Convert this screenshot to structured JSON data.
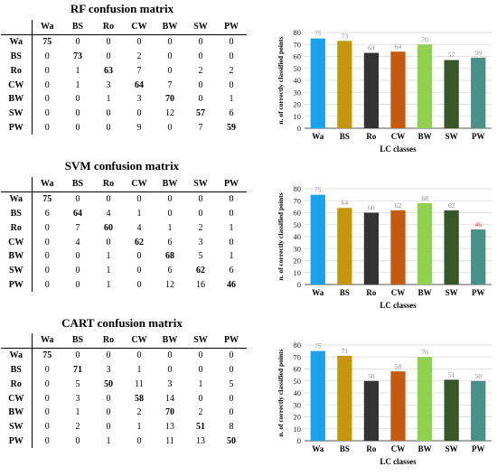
{
  "panels": [
    {
      "title": "RF confusion matrix",
      "matrix": {
        "columns": [
          "Wa",
          "BS",
          "Ro",
          "CW",
          "BW",
          "SW",
          "PW"
        ],
        "rows": [
          {
            "label": "Wa",
            "values": [
              75,
              0,
              0,
              0,
              0,
              0,
              0
            ]
          },
          {
            "label": "BS",
            "values": [
              0,
              73,
              0,
              2,
              0,
              0,
              0
            ]
          },
          {
            "label": "Ro",
            "values": [
              0,
              1,
              63,
              7,
              0,
              2,
              2
            ]
          },
          {
            "label": "CW",
            "values": [
              0,
              1,
              3,
              64,
              7,
              0,
              0
            ]
          },
          {
            "label": "BW",
            "values": [
              0,
              0,
              1,
              3,
              70,
              0,
              1
            ]
          },
          {
            "label": "SW",
            "values": [
              0,
              0,
              0,
              0,
              12,
              57,
              6
            ]
          },
          {
            "label": "PW",
            "values": [
              0,
              0,
              0,
              9,
              0,
              7,
              59
            ]
          }
        ]
      }
    },
    {
      "title": "SVM confusion matrix",
      "matrix": {
        "columns": [
          "Wa",
          "BS",
          "Ro",
          "CW",
          "BW",
          "SW",
          "PW"
        ],
        "rows": [
          {
            "label": "Wa",
            "values": [
              75,
              0,
              0,
              0,
              0,
              0,
              0
            ]
          },
          {
            "label": "BS",
            "values": [
              6,
              64,
              4,
              1,
              0,
              0,
              0
            ]
          },
          {
            "label": "Ro",
            "values": [
              0,
              7,
              60,
              4,
              1,
              2,
              1
            ]
          },
          {
            "label": "CW",
            "values": [
              0,
              4,
              0,
              62,
              6,
              3,
              0
            ]
          },
          {
            "label": "BW",
            "values": [
              0,
              0,
              1,
              0,
              68,
              5,
              1
            ]
          },
          {
            "label": "SW",
            "values": [
              0,
              0,
              1,
              0,
              6,
              62,
              6
            ]
          },
          {
            "label": "PW",
            "values": [
              0,
              0,
              1,
              0,
              12,
              16,
              46
            ]
          }
        ]
      }
    },
    {
      "title": "CART  confusion matrix",
      "matrix": {
        "columns": [
          "Wa",
          "BS",
          "Ro",
          "CW",
          "BW",
          "SW",
          "PW"
        ],
        "rows": [
          {
            "label": "Wa",
            "values": [
              75,
              0,
              0,
              0,
              0,
              0,
              0
            ]
          },
          {
            "label": "BS",
            "values": [
              0,
              71,
              3,
              1,
              0,
              0,
              0
            ]
          },
          {
            "label": "Ro",
            "values": [
              0,
              5,
              50,
              11,
              3,
              1,
              5
            ]
          },
          {
            "label": "CW",
            "values": [
              0,
              3,
              0,
              58,
              14,
              0,
              0
            ]
          },
          {
            "label": "BW",
            "values": [
              0,
              1,
              0,
              2,
              70,
              2,
              0
            ]
          },
          {
            "label": "SW",
            "values": [
              0,
              2,
              0,
              1,
              13,
              51,
              8
            ]
          },
          {
            "label": "PW",
            "values": [
              0,
              0,
              1,
              0,
              11,
              13,
              50
            ]
          }
        ]
      }
    }
  ],
  "chart_data": [
    {
      "type": "bar",
      "categories": [
        "Wa",
        "BS",
        "Ro",
        "CW",
        "BW",
        "SW",
        "PW"
      ],
      "values": [
        75,
        73,
        63,
        64,
        70,
        57,
        59
      ],
      "colors": [
        "#1ba1e8",
        "#c4960e",
        "#333333",
        "#c55a12",
        "#92d050",
        "#38562a",
        "#4a9086"
      ],
      "xlabel": "LC classes",
      "ylabel": "n. of correctly classified points",
      "ylim": [
        0,
        80
      ],
      "yticks": [
        0,
        10,
        20,
        30,
        40,
        50,
        60,
        70,
        80
      ],
      "grid": true,
      "data_label_color": "#8a8a8a"
    },
    {
      "type": "bar",
      "categories": [
        "Wa",
        "BS",
        "Ro",
        "CW",
        "BW",
        "SW",
        "PW"
      ],
      "values": [
        75,
        64,
        60,
        62,
        68,
        62,
        46
      ],
      "colors": [
        "#1ba1e8",
        "#c4960e",
        "#333333",
        "#c55a12",
        "#92d050",
        "#38562a",
        "#4a9086"
      ],
      "xlabel": "LC classes",
      "ylabel": "n. of correctly classified points",
      "ylim": [
        0,
        80
      ],
      "yticks": [
        0,
        10,
        20,
        30,
        40,
        50,
        60,
        70,
        80
      ],
      "grid": true,
      "data_label_color": "#8a8a8a",
      "highlight_label_index": 6,
      "highlight_label_color": "#d04040"
    },
    {
      "type": "bar",
      "categories": [
        "Wa",
        "BS",
        "Ro",
        "CW",
        "BW",
        "SW",
        "PW"
      ],
      "values": [
        75,
        71,
        50,
        58,
        70,
        51,
        50
      ],
      "colors": [
        "#1ba1e8",
        "#c4960e",
        "#333333",
        "#c55a12",
        "#92d050",
        "#38562a",
        "#4a9086"
      ],
      "xlabel": "LC classes",
      "ylabel": "n. of correctly classified points",
      "ylim": [
        0,
        80
      ],
      "yticks": [
        0,
        10,
        20,
        30,
        40,
        50,
        60,
        70,
        80
      ],
      "grid": true,
      "data_label_color": "#8a8a8a"
    }
  ]
}
